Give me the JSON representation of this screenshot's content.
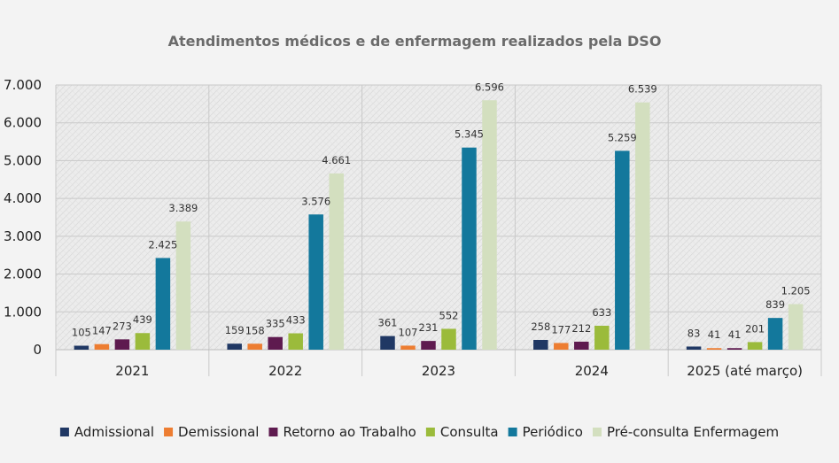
{
  "chart_data": {
    "type": "bar",
    "title": "Atendimentos médicos e de enfermagem realizados pela DSO",
    "categories": [
      "2021",
      "2022",
      "2023",
      "2024",
      "2025 (até março)"
    ],
    "ylim": [
      0,
      7000
    ],
    "yticks": [
      0,
      1000,
      2000,
      3000,
      4000,
      5000,
      6000,
      7000
    ],
    "ytick_labels": [
      "0",
      "1.000",
      "2.000",
      "3.000",
      "4.000",
      "5.000",
      "6.000",
      "7.000"
    ],
    "grid": true,
    "legend_position": "bottom",
    "series": [
      {
        "name": "Admissional",
        "color": "#203864",
        "values": [
          105,
          159,
          361,
          258,
          83
        ],
        "labels": [
          "105",
          "159",
          "361",
          "258",
          "83"
        ]
      },
      {
        "name": "Demissional",
        "color": "#ed7d31",
        "values": [
          147,
          158,
          107,
          177,
          41
        ],
        "labels": [
          "147",
          "158",
          "107",
          "177",
          "41"
        ]
      },
      {
        "name": "Retorno ao Trabalho",
        "color": "#5e1a4f",
        "values": [
          273,
          335,
          231,
          212,
          41
        ],
        "labels": [
          "273",
          "335",
          "231",
          "212",
          "41"
        ]
      },
      {
        "name": "Consulta",
        "color": "#9bbb3b",
        "values": [
          439,
          433,
          552,
          633,
          201
        ],
        "labels": [
          "439",
          "433",
          "552",
          "633",
          "201"
        ]
      },
      {
        "name": "Periódico",
        "color": "#13789c",
        "values": [
          2425,
          3576,
          5345,
          5259,
          839
        ],
        "labels": [
          "2.425",
          "3.576",
          "5.345",
          "5.259",
          "839"
        ]
      },
      {
        "name": "Pré-consulta Enfermagem",
        "color": "#d3dfbf",
        "values": [
          3389,
          4661,
          6596,
          6539,
          1205
        ],
        "labels": [
          "3.389",
          "4.661",
          "6.596",
          "6.539",
          "1.205"
        ]
      }
    ]
  }
}
